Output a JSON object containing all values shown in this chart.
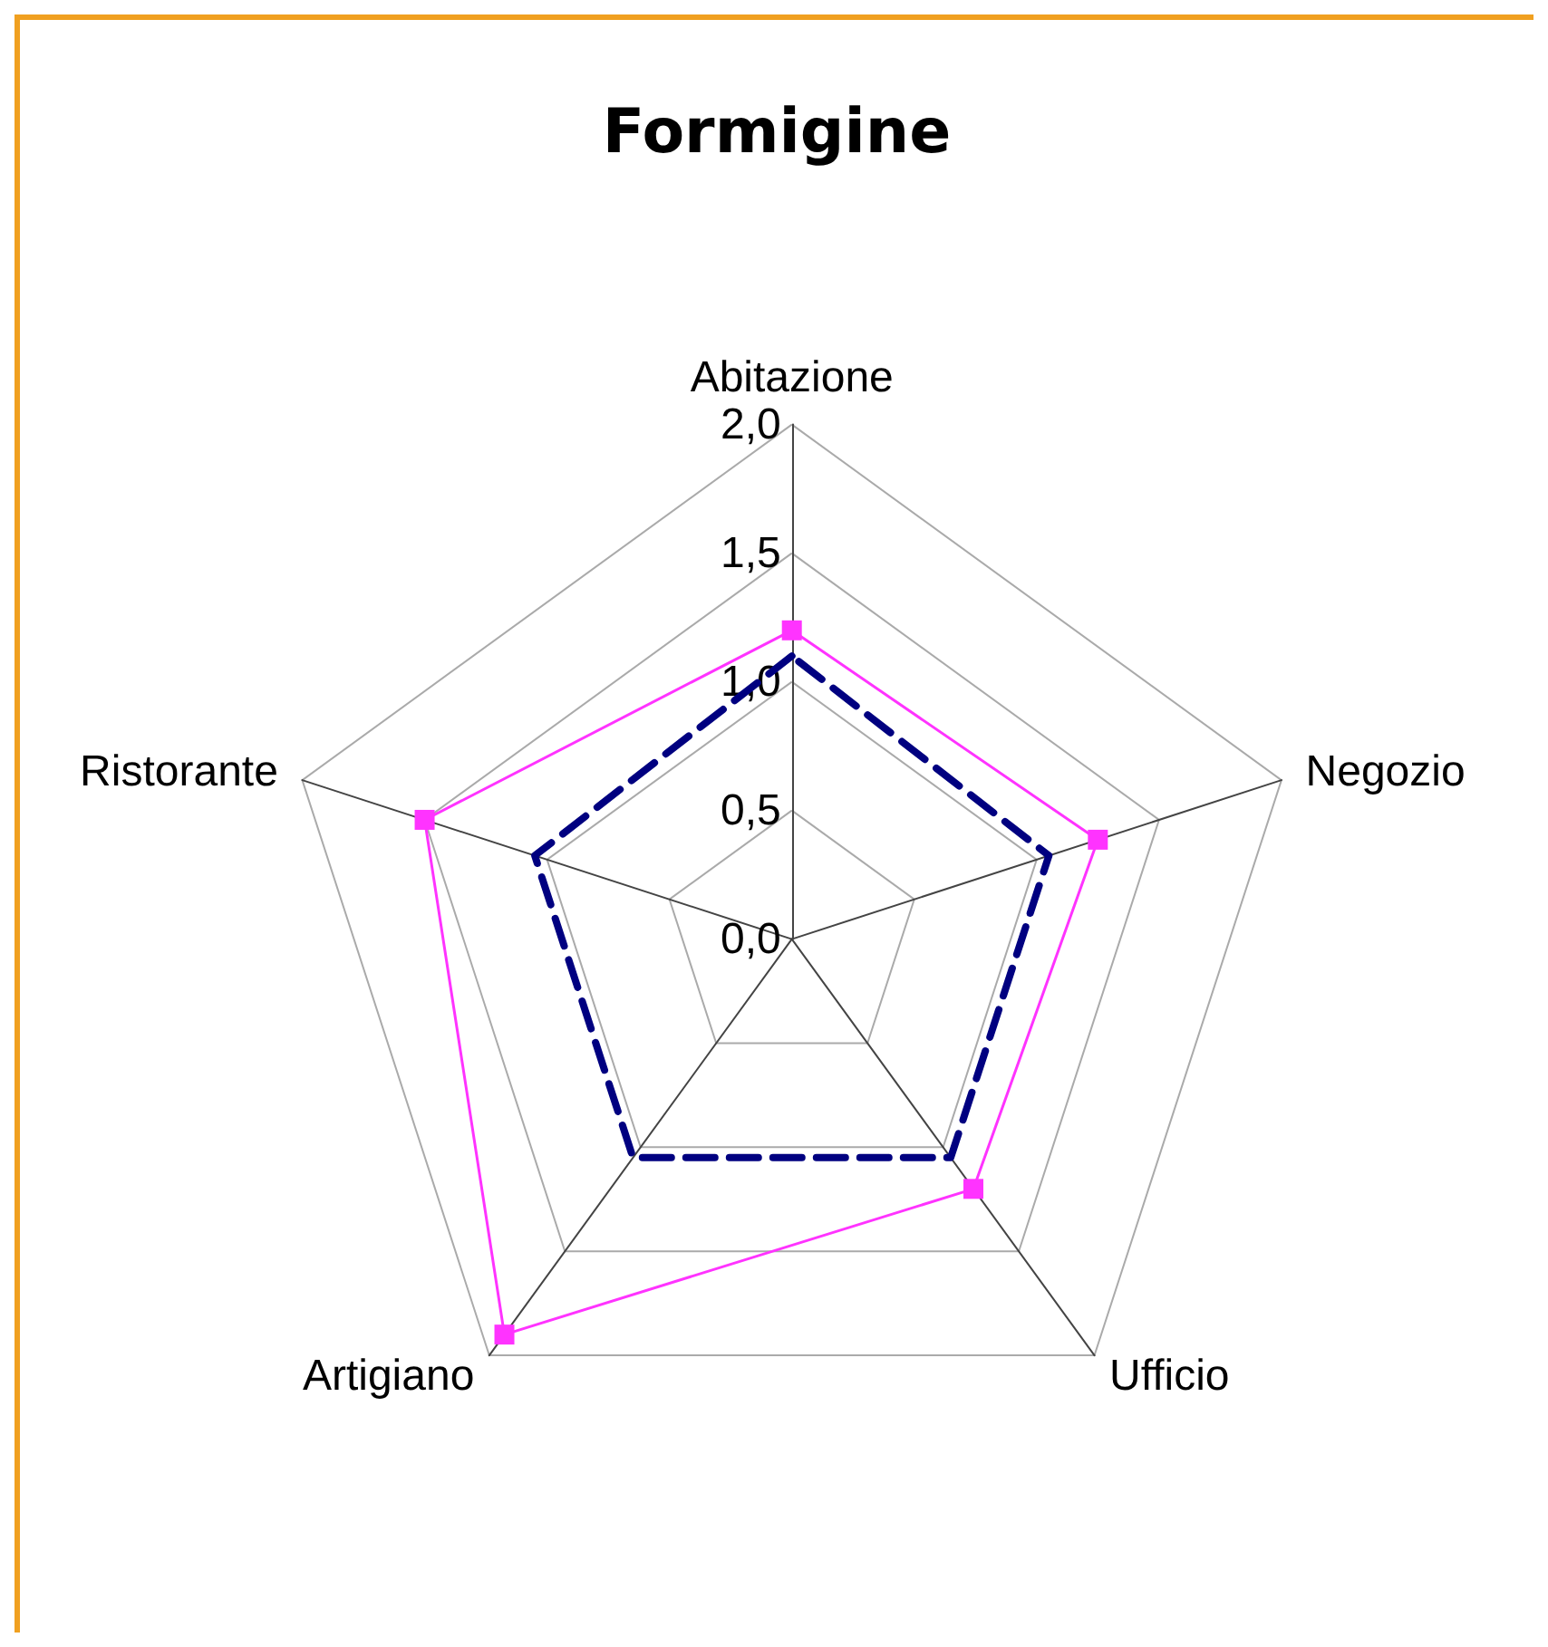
{
  "chart_data": {
    "type": "radar",
    "title": "Formigine",
    "categories": [
      "Abitazione",
      "Negozio",
      "Ufficio",
      "Artigiano",
      "Ristorante"
    ],
    "series": [
      {
        "color": "#ff33ff",
        "values": [
          1.2,
          1.25,
          1.2,
          1.9,
          1.5
        ],
        "marker": "square",
        "line_style": "solid"
      },
      {
        "color": "#000080",
        "values": [
          1.1,
          1.05,
          1.05,
          1.05,
          1.05
        ],
        "marker": "none",
        "line_style": "dashed"
      }
    ],
    "ylim": [
      0,
      2
    ],
    "yticks": [
      {
        "value": 0,
        "label": "0,0"
      },
      {
        "value": 0.5,
        "label": "0,5"
      },
      {
        "value": 1,
        "label": "1,0"
      },
      {
        "value": 1.5,
        "label": "1,5"
      },
      {
        "value": 2,
        "label": "2,0"
      }
    ],
    "grid": true
  }
}
